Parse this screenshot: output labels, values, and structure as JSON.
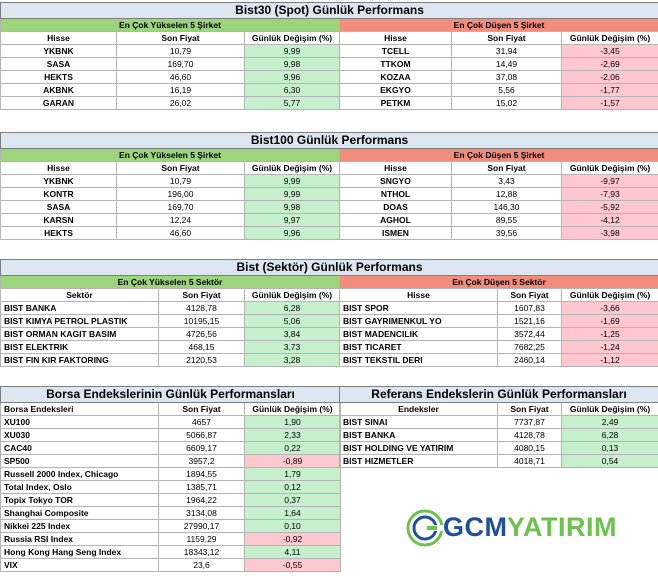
{
  "bist30": {
    "title": "Bist30 (Spot) Günlük Performans",
    "up_title": "En Çok Yükselen 5 Şirket",
    "down_title": "En Çok Düşen 5 Şirket",
    "headers": [
      "Hisse",
      "Son Fiyat",
      "Günlük Değişim (%)"
    ],
    "up": [
      {
        "name": "YKBNK",
        "price": "10,79",
        "change": "9,99"
      },
      {
        "name": "SASA",
        "price": "169,70",
        "change": "9,98"
      },
      {
        "name": "HEKTS",
        "price": "46,60",
        "change": "9,96"
      },
      {
        "name": "AKBNK",
        "price": "16,19",
        "change": "6,30"
      },
      {
        "name": "GARAN",
        "price": "26,02",
        "change": "5,77"
      }
    ],
    "down": [
      {
        "name": "TCELL",
        "price": "31,94",
        "change": "-3,45"
      },
      {
        "name": "TTKOM",
        "price": "14,49",
        "change": "-2,69"
      },
      {
        "name": "KOZAA",
        "price": "37,08",
        "change": "-2,06"
      },
      {
        "name": "EKGYO",
        "price": "5,56",
        "change": "-1,77"
      },
      {
        "name": "PETKM",
        "price": "15,02",
        "change": "-1,57"
      }
    ]
  },
  "bist100": {
    "title": "Bist100 Günlük Performans",
    "up_title": "En Çok Yükselen 5 Şirket",
    "down_title": "En Çok Düşen 5 Şirket",
    "headers": [
      "Hisse",
      "Son Fiyat",
      "Günlük Değişim (%)"
    ],
    "up": [
      {
        "name": "YKBNK",
        "price": "10,79",
        "change": "9,99"
      },
      {
        "name": "KONTR",
        "price": "196,00",
        "change": "9,99"
      },
      {
        "name": "SASA",
        "price": "169,70",
        "change": "9,98"
      },
      {
        "name": "KARSN",
        "price": "12,24",
        "change": "9,97"
      },
      {
        "name": "HEKTS",
        "price": "46,60",
        "change": "9,96"
      }
    ],
    "down": [
      {
        "name": "SNGYO",
        "price": "3,43",
        "change": "-9,97"
      },
      {
        "name": "NTHOL",
        "price": "12,88",
        "change": "-7,93"
      },
      {
        "name": "DOAS",
        "price": "146,30",
        "change": "-5,92"
      },
      {
        "name": "AGHOL",
        "price": "89,55",
        "change": "-4,12"
      },
      {
        "name": "ISMEN",
        "price": "39,56",
        "change": "-3,98"
      }
    ]
  },
  "sector": {
    "title": "Bist (Sektör) Günlük Performans",
    "up_title": "En Çok Yükselen 5 Sektör",
    "down_title": "En Çok Düşen 5 Sektör",
    "headers_left": [
      "Sektör",
      "Son Fiyat",
      "Günlük Değişim (%)"
    ],
    "headers_right": [
      "Hisse",
      "Son Fiyat",
      "Günlük Değişim (%)"
    ],
    "up": [
      {
        "name": "BIST BANKA",
        "price": "4128,78",
        "change": "6,28"
      },
      {
        "name": "BIST KIMYA PETROL PLASTIK",
        "price": "10195,15",
        "change": "5,06"
      },
      {
        "name": "BIST ORMAN KAGIT BASIM",
        "price": "4726,56",
        "change": "3,84"
      },
      {
        "name": "BIST ELEKTRIK",
        "price": "468,15",
        "change": "3,73"
      },
      {
        "name": "BIST FIN KIR FAKTORING",
        "price": "2120,53",
        "change": "3,28"
      }
    ],
    "down": [
      {
        "name": "BIST SPOR",
        "price": "1607,83",
        "change": "-3,66"
      },
      {
        "name": "BIST GAYRIMENKUL YO",
        "price": "1521,16",
        "change": "-1,69"
      },
      {
        "name": "BIST MADENCILIK",
        "price": "3572,44",
        "change": "-1,25"
      },
      {
        "name": "BIST TICARET",
        "price": "7682,25",
        "change": "-1,24"
      },
      {
        "name": "BIST TEKSTIL DERI",
        "price": "2460,14",
        "change": "-1,12"
      }
    ]
  },
  "borsa": {
    "title": "Borsa Endekslerinin Günlük Performansları",
    "headers": [
      "Borsa Endeksleri",
      "Son Fiyat",
      "Günlük Değişim (%)"
    ],
    "rows": [
      {
        "name": "XU100",
        "price": "4657",
        "change": "1,90",
        "dir": "up"
      },
      {
        "name": "XU030",
        "price": "5066,87",
        "change": "2,33",
        "dir": "up"
      },
      {
        "name": "CAC40",
        "price": "6609,17",
        "change": "0,22",
        "dir": "up"
      },
      {
        "name": "SP500",
        "price": "3957,2",
        "change": "-0,89",
        "dir": "dn"
      },
      {
        "name": "Russell 2000 Index, Chicago",
        "price": "1894,55",
        "change": "1,79",
        "dir": "up"
      },
      {
        "name": "Total Index, Oslo",
        "price": "1385,71",
        "change": "0,12",
        "dir": "up"
      },
      {
        "name": "Topix Tokyo TOR",
        "price": "1964,22",
        "change": "0,37",
        "dir": "up"
      },
      {
        "name": "Shanghai Composite",
        "price": "3134,08",
        "change": "1,64",
        "dir": "up"
      },
      {
        "name": "Nikkei 225 Index",
        "price": "27990,17",
        "change": "0,10",
        "dir": "up"
      },
      {
        "name": "Russia RSI Index",
        "price": "1159,29",
        "change": "-0,92",
        "dir": "dn"
      },
      {
        "name": "Hong Kong Hang Seng Index",
        "price": "18343,12",
        "change": "4,11",
        "dir": "up"
      },
      {
        "name": "VIX",
        "price": "23,6",
        "change": "-0,55",
        "dir": "dn"
      }
    ]
  },
  "referans": {
    "title": "Referans Endekslerin  Günlük Performansları",
    "headers": [
      "Endeksler",
      "Son Fiyat",
      "Günlük Değişim (%)"
    ],
    "rows": [
      {
        "name": "BIST SINAI",
        "price": "7737,87",
        "change": "2,49"
      },
      {
        "name": "BIST BANKA",
        "price": "4128,78",
        "change": "6,28"
      },
      {
        "name": "BIST HOLDING VE YATIRIM",
        "price": "4080,15",
        "change": "0,13"
      },
      {
        "name": "BIST HIZMETLER",
        "price": "4018,71",
        "change": "0,54"
      }
    ]
  },
  "logo": {
    "part1": "GCM",
    "part2": "YATIRIM",
    "color_green": "#6cc24a",
    "color_blue": "#1f4e9c"
  },
  "colors": {
    "title_bg": "#dce6f1",
    "up_header": "#9bd47a",
    "down_header": "#f28c7c",
    "up_cell": "#c6efce",
    "down_cell": "#ffc7ce"
  }
}
